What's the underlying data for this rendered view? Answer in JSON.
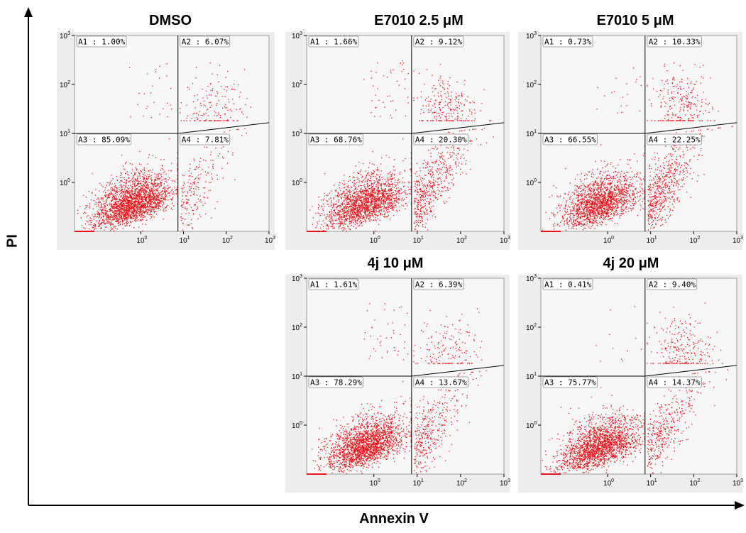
{
  "chart_data": {
    "type": "scatter",
    "description_axes": true,
    "xlabel": "Annexin V",
    "ylabel": "PI",
    "point_color": "#e8141c",
    "plot_bg": "#f7f7f7",
    "scale": "log",
    "x_ticks": [
      "10",
      "10",
      "10",
      "10"
    ],
    "x_tick_exponents": [
      "0",
      "1",
      "2",
      "3"
    ],
    "y_ticks": [
      "10",
      "10",
      "10",
      "10"
    ],
    "y_tick_exponents": [
      "0",
      "1",
      "2",
      "3"
    ],
    "panels": [
      {
        "title": "DMSO",
        "quadrants": {
          "A1": "A1 : 1.00%",
          "A2": "A2 : 6.07%",
          "A3": "A3 : 85.09%",
          "A4": "A4 : 7.81%"
        },
        "percentages": {
          "A1": 1.0,
          "A2": 6.07,
          "A3": 85.09,
          "A4": 7.81
        }
      },
      {
        "title": "E7010 2.5 μM",
        "quadrants": {
          "A1": "A1 : 1.66%",
          "A2": "A2 : 9.12%",
          "A3": "A3 : 68.76%",
          "A4": "A4 : 20.30%"
        },
        "percentages": {
          "A1": 1.66,
          "A2": 9.12,
          "A3": 68.76,
          "A4": 20.3
        }
      },
      {
        "title": "E7010 5 μM",
        "quadrants": {
          "A1": "A1 : 0.73%",
          "A2": "A2 : 10.33%",
          "A3": "A3 : 66.55%",
          "A4": "A4 : 22.25%"
        },
        "percentages": {
          "A1": 0.73,
          "A2": 10.33,
          "A3": 66.55,
          "A4": 22.25
        }
      },
      {
        "title": "4j 10 μM",
        "quadrants": {
          "A1": "A1 : 1.61%",
          "A2": "A2 : 6.39%",
          "A3": "A3 : 78.29%",
          "A4": "A4 : 13.67%"
        },
        "percentages": {
          "A1": 1.61,
          "A2": 6.39,
          "A3": 78.29,
          "A4": 13.67
        }
      },
      {
        "title": "4j 20 μM",
        "quadrants": {
          "A1": "A1 : 0.41%",
          "A2": "A2 : 9.40%",
          "A3": "A3 : 75.77%",
          "A4": "A4 : 14.37%"
        },
        "percentages": {
          "A1": 0.41,
          "A2": 9.4,
          "A3": 75.77,
          "A4": 14.37
        }
      }
    ]
  }
}
